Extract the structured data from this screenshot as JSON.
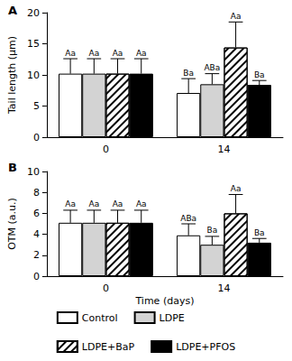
{
  "chart_data": [
    {
      "type": "bar",
      "title": "A",
      "y_label": "Tail length (µm)",
      "categories": [
        "0",
        "14"
      ],
      "ylim": [
        0,
        20
      ],
      "yticks": [
        0,
        5,
        10,
        15,
        20
      ],
      "grid": false,
      "series": [
        {
          "name": "Control",
          "color": "#ffffff",
          "values": [
            10.2,
            7.1
          ],
          "errors": [
            2.4,
            2.3
          ],
          "annotations": [
            "Aa",
            "Ba"
          ]
        },
        {
          "name": "LDPE",
          "color": "#d3d3d3",
          "values": [
            10.2,
            8.5
          ],
          "errors": [
            2.4,
            1.7
          ],
          "annotations": [
            "Aa",
            "ABa"
          ]
        },
        {
          "name": "LDPE+BaP",
          "color": "#ffffff",
          "values": [
            10.2,
            14.4
          ],
          "errors": [
            2.4,
            4.1
          ],
          "annotations": [
            "Aa",
            "Aa"
          ]
        },
        {
          "name": "LDPE+PFOS",
          "color": "#000000",
          "values": [
            10.2,
            8.4
          ],
          "errors": [
            2.4,
            0.7
          ],
          "annotations": [
            "Aa",
            "Ba"
          ]
        }
      ]
    },
    {
      "type": "bar",
      "title": "B",
      "y_label": "OTM (a.u.)",
      "x_label": "Time (days)",
      "categories": [
        "0",
        "14"
      ],
      "ylim": [
        0,
        10
      ],
      "yticks": [
        0,
        2,
        4,
        6,
        8,
        10
      ],
      "grid": false,
      "legend": "bottom",
      "series": [
        {
          "name": "Control",
          "color": "#ffffff",
          "values": [
            5.1,
            3.9
          ],
          "errors": [
            1.2,
            1.1
          ],
          "annotations": [
            "Aa",
            "ABa"
          ]
        },
        {
          "name": "LDPE",
          "color": "#d3d3d3",
          "values": [
            5.1,
            3.0
          ],
          "errors": [
            1.2,
            0.8
          ],
          "annotations": [
            "Aa",
            "Ba"
          ]
        },
        {
          "name": "LDPE+BaP",
          "color": "#ffffff",
          "values": [
            5.1,
            6.0
          ],
          "errors": [
            1.2,
            1.8
          ],
          "annotations": [
            "Aa",
            "Aa"
          ]
        },
        {
          "name": "LDPE+PFOS",
          "color": "#000000",
          "values": [
            5.1,
            3.2
          ],
          "errors": [
            1.2,
            0.4
          ],
          "annotations": [
            "Aa",
            "Ba"
          ]
        }
      ]
    }
  ]
}
